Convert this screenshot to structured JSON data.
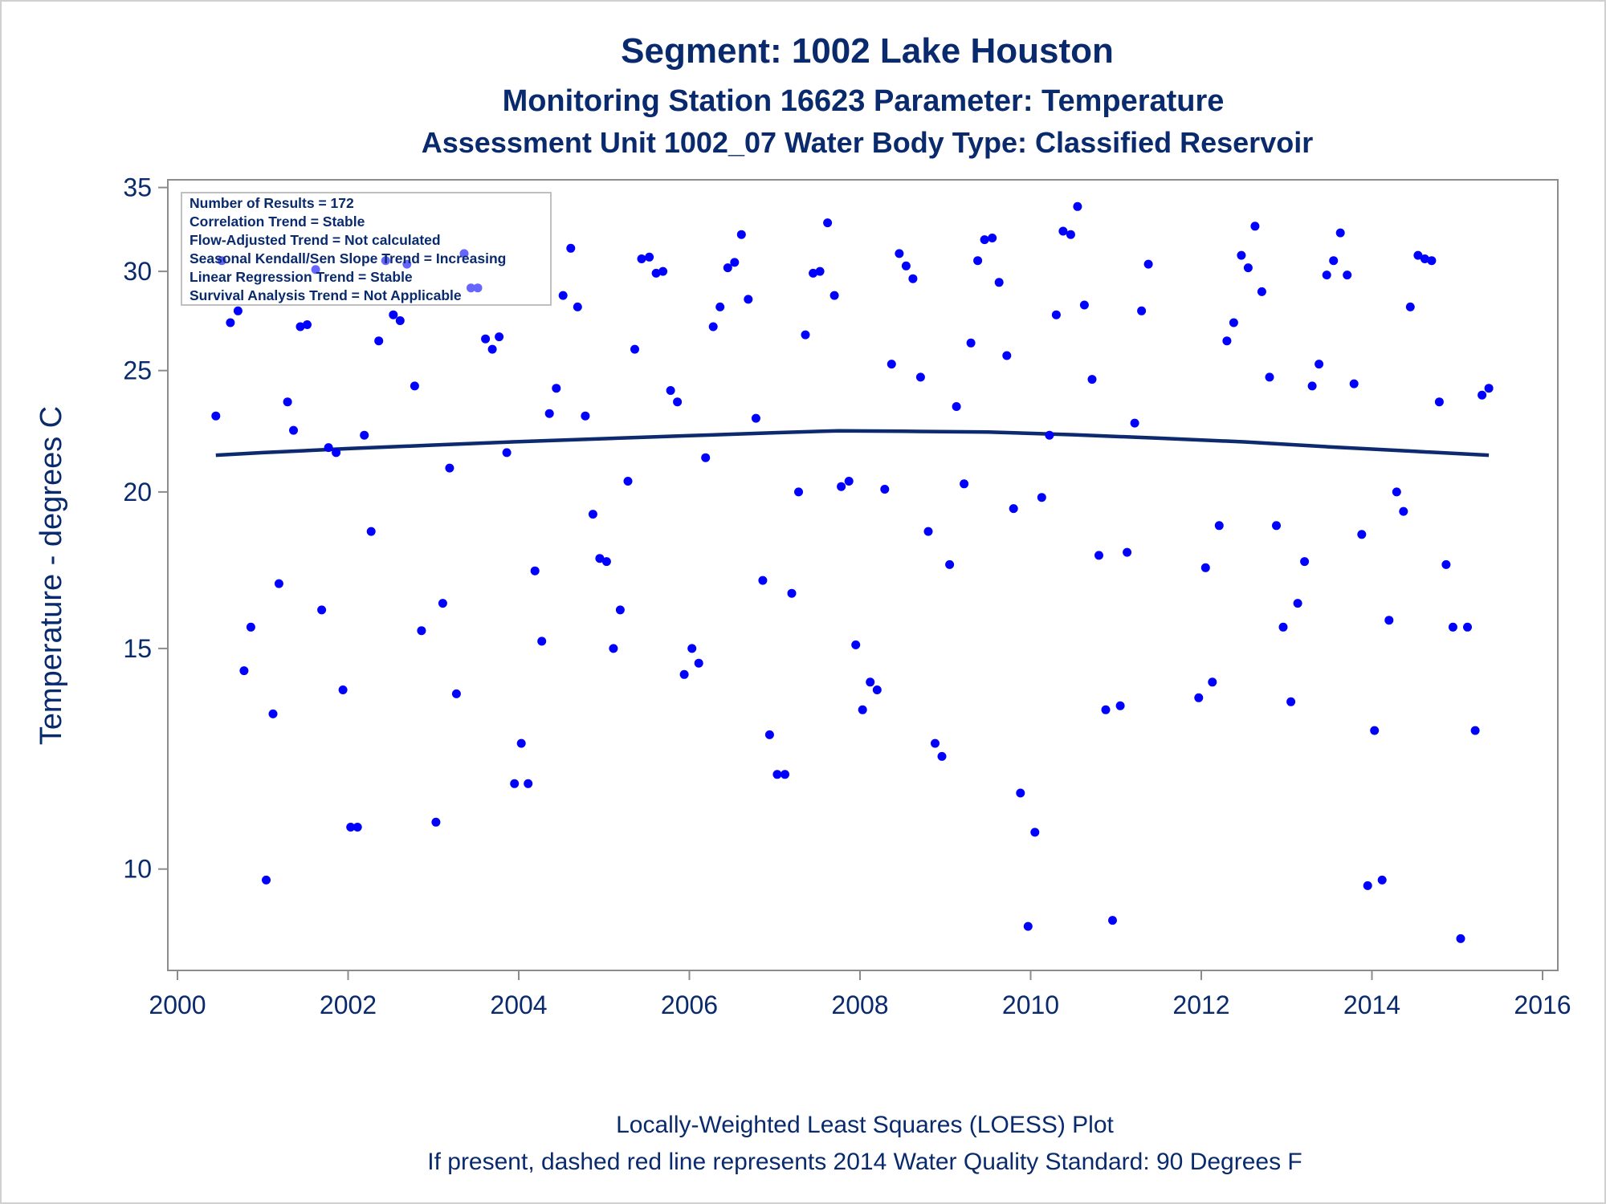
{
  "chart_data": {
    "type": "scatter",
    "title": "Segment: 1002  Lake Houston",
    "subtitle": "Monitoring Station 16623 Parameter: Temperature",
    "subtitle2": "Assessment Unit 1002_07   Water Body Type: Classified Reservoir",
    "ylabel": "Temperature - degrees C",
    "xlabel": "",
    "xlim": [
      2000,
      2016
    ],
    "ylim": [
      8.3,
      35.5
    ],
    "y_scale": "log",
    "x_ticks": [
      "2000",
      "2002",
      "2004",
      "2006",
      "2008",
      "2010",
      "2012",
      "2014",
      "2016"
    ],
    "y_ticks": [
      "10",
      "15",
      "20",
      "25",
      "30",
      "35"
    ],
    "grid": false,
    "stats_box": [
      "Number of Results = 172",
      "Correlation Trend = Stable",
      "Flow-Adjusted Trend = Not calculated",
      "Seasonal Kendall/Sen Slope Trend = Increasing",
      "Linear Regression Trend = Stable",
      "Survival Analysis Trend = Not Applicable"
    ],
    "footnotes": [
      "Locally-Weighted Least Squares (LOESS) Plot",
      "If present, dashed red line represents 2014 Water Quality Standard: 90   Degrees F"
    ],
    "point_color": "#0000ff",
    "trend_color": "#0d2a6e",
    "points": [
      [
        2000.45,
        23.0
      ],
      [
        2000.52,
        30.6
      ],
      [
        2000.62,
        27.3
      ],
      [
        2000.71,
        27.9
      ],
      [
        2000.78,
        14.4
      ],
      [
        2000.86,
        15.6
      ],
      [
        2001.04,
        9.8
      ],
      [
        2001.12,
        13.3
      ],
      [
        2001.19,
        16.9
      ],
      [
        2001.29,
        23.6
      ],
      [
        2001.36,
        22.4
      ],
      [
        2001.44,
        27.1
      ],
      [
        2001.52,
        27.2
      ],
      [
        2001.62,
        30.1
      ],
      [
        2001.69,
        16.1
      ],
      [
        2001.77,
        21.7
      ],
      [
        2001.86,
        21.5
      ],
      [
        2001.94,
        13.9
      ],
      [
        2002.03,
        10.8
      ],
      [
        2002.11,
        10.8
      ],
      [
        2002.19,
        22.2
      ],
      [
        2002.27,
        18.6
      ],
      [
        2002.36,
        26.4
      ],
      [
        2002.44,
        30.6
      ],
      [
        2002.53,
        27.7
      ],
      [
        2002.61,
        27.4
      ],
      [
        2002.69,
        30.4
      ],
      [
        2002.78,
        24.3
      ],
      [
        2002.86,
        15.5
      ],
      [
        2003.03,
        10.9
      ],
      [
        2003.11,
        16.3
      ],
      [
        2003.19,
        20.9
      ],
      [
        2003.27,
        13.8
      ],
      [
        2003.36,
        31.0
      ],
      [
        2003.44,
        29.1
      ],
      [
        2003.52,
        29.1
      ],
      [
        2003.61,
        26.5
      ],
      [
        2003.69,
        26.0
      ],
      [
        2003.77,
        26.6
      ],
      [
        2003.86,
        21.5
      ],
      [
        2003.95,
        11.7
      ],
      [
        2004.03,
        12.6
      ],
      [
        2004.11,
        11.7
      ],
      [
        2004.19,
        17.3
      ],
      [
        2004.27,
        15.2
      ],
      [
        2004.36,
        23.1
      ],
      [
        2004.44,
        24.2
      ],
      [
        2004.52,
        28.7
      ],
      [
        2004.61,
        31.3
      ],
      [
        2004.69,
        28.1
      ],
      [
        2004.78,
        23.0
      ],
      [
        2004.87,
        19.2
      ],
      [
        2004.95,
        17.7
      ],
      [
        2005.03,
        17.6
      ],
      [
        2005.11,
        15.0
      ],
      [
        2005.19,
        16.1
      ],
      [
        2005.28,
        20.4
      ],
      [
        2005.36,
        26.0
      ],
      [
        2005.44,
        30.7
      ],
      [
        2005.53,
        30.8
      ],
      [
        2005.61,
        29.9
      ],
      [
        2005.69,
        30.0
      ],
      [
        2005.78,
        24.1
      ],
      [
        2005.86,
        23.6
      ],
      [
        2005.94,
        14.3
      ],
      [
        2006.03,
        15.0
      ],
      [
        2006.11,
        14.6
      ],
      [
        2006.19,
        21.3
      ],
      [
        2006.28,
        27.1
      ],
      [
        2006.36,
        28.1
      ],
      [
        2006.45,
        30.2
      ],
      [
        2006.53,
        30.5
      ],
      [
        2006.61,
        32.1
      ],
      [
        2006.69,
        28.5
      ],
      [
        2006.78,
        22.9
      ],
      [
        2006.86,
        17.0
      ],
      [
        2006.94,
        12.8
      ],
      [
        2007.03,
        11.9
      ],
      [
        2007.12,
        11.9
      ],
      [
        2007.2,
        16.6
      ],
      [
        2007.28,
        20.0
      ],
      [
        2007.36,
        26.7
      ],
      [
        2007.45,
        29.9
      ],
      [
        2007.53,
        30.0
      ],
      [
        2007.62,
        32.8
      ],
      [
        2007.7,
        28.7
      ],
      [
        2007.78,
        20.2
      ],
      [
        2007.87,
        20.4
      ],
      [
        2007.95,
        15.1
      ],
      [
        2008.03,
        13.4
      ],
      [
        2008.12,
        14.1
      ],
      [
        2008.2,
        13.9
      ],
      [
        2008.29,
        20.1
      ],
      [
        2008.37,
        25.3
      ],
      [
        2008.46,
        31.0
      ],
      [
        2008.54,
        30.3
      ],
      [
        2008.62,
        29.6
      ],
      [
        2008.71,
        24.7
      ],
      [
        2008.8,
        18.6
      ],
      [
        2008.88,
        12.6
      ],
      [
        2008.96,
        12.3
      ],
      [
        2009.05,
        17.5
      ],
      [
        2009.13,
        23.4
      ],
      [
        2009.22,
        20.3
      ],
      [
        2009.3,
        26.3
      ],
      [
        2009.38,
        30.6
      ],
      [
        2009.46,
        31.8
      ],
      [
        2009.55,
        31.9
      ],
      [
        2009.63,
        29.4
      ],
      [
        2009.72,
        25.7
      ],
      [
        2009.8,
        19.4
      ],
      [
        2009.88,
        11.5
      ],
      [
        2009.97,
        9.0
      ],
      [
        2010.05,
        10.7
      ],
      [
        2010.13,
        19.8
      ],
      [
        2010.22,
        22.2
      ],
      [
        2010.3,
        27.7
      ],
      [
        2010.38,
        32.3
      ],
      [
        2010.47,
        32.1
      ],
      [
        2010.55,
        33.8
      ],
      [
        2010.63,
        28.2
      ],
      [
        2010.72,
        24.6
      ],
      [
        2010.8,
        17.8
      ],
      [
        2010.88,
        13.4
      ],
      [
        2010.96,
        9.1
      ],
      [
        2011.05,
        13.5
      ],
      [
        2011.13,
        17.9
      ],
      [
        2011.22,
        22.7
      ],
      [
        2011.3,
        27.9
      ],
      [
        2011.38,
        30.4
      ],
      [
        2011.97,
        13.7
      ],
      [
        2012.05,
        17.4
      ],
      [
        2012.13,
        14.1
      ],
      [
        2012.21,
        18.8
      ],
      [
        2012.3,
        26.4
      ],
      [
        2012.38,
        27.3
      ],
      [
        2012.47,
        30.9
      ],
      [
        2012.55,
        30.2
      ],
      [
        2012.63,
        32.6
      ],
      [
        2012.71,
        28.9
      ],
      [
        2012.8,
        24.7
      ],
      [
        2012.88,
        18.8
      ],
      [
        2012.96,
        15.6
      ],
      [
        2013.05,
        13.6
      ],
      [
        2013.13,
        16.3
      ],
      [
        2013.21,
        17.6
      ],
      [
        2013.3,
        24.3
      ],
      [
        2013.38,
        25.3
      ],
      [
        2013.47,
        29.8
      ],
      [
        2013.55,
        30.6
      ],
      [
        2013.63,
        32.2
      ],
      [
        2013.71,
        29.8
      ],
      [
        2013.79,
        24.4
      ],
      [
        2013.88,
        18.5
      ],
      [
        2013.95,
        9.7
      ],
      [
        2014.03,
        12.9
      ],
      [
        2014.12,
        9.8
      ],
      [
        2014.2,
        15.8
      ],
      [
        2014.29,
        20.0
      ],
      [
        2014.37,
        19.3
      ],
      [
        2014.45,
        28.1
      ],
      [
        2014.54,
        30.9
      ],
      [
        2014.62,
        30.7
      ],
      [
        2014.7,
        30.6
      ],
      [
        2014.79,
        23.6
      ],
      [
        2014.87,
        17.5
      ],
      [
        2014.95,
        15.6
      ],
      [
        2015.04,
        8.8
      ],
      [
        2015.12,
        15.6
      ],
      [
        2015.21,
        12.9
      ],
      [
        2015.29,
        23.9
      ],
      [
        2015.37,
        24.2
      ]
    ],
    "trend_line": [
      [
        2000.45,
        21.4
      ],
      [
        2001.0,
        21.5
      ],
      [
        2002.0,
        21.66
      ],
      [
        2003.0,
        21.8
      ],
      [
        2004.0,
        21.94
      ],
      [
        2005.0,
        22.06
      ],
      [
        2006.0,
        22.18
      ],
      [
        2007.0,
        22.3
      ],
      [
        2007.75,
        22.38
      ],
      [
        2008.5,
        22.36
      ],
      [
        2009.5,
        22.33
      ],
      [
        2010.5,
        22.22
      ],
      [
        2011.5,
        22.08
      ],
      [
        2012.5,
        21.93
      ],
      [
        2013.5,
        21.73
      ],
      [
        2014.5,
        21.55
      ],
      [
        2015.37,
        21.4
      ]
    ]
  }
}
